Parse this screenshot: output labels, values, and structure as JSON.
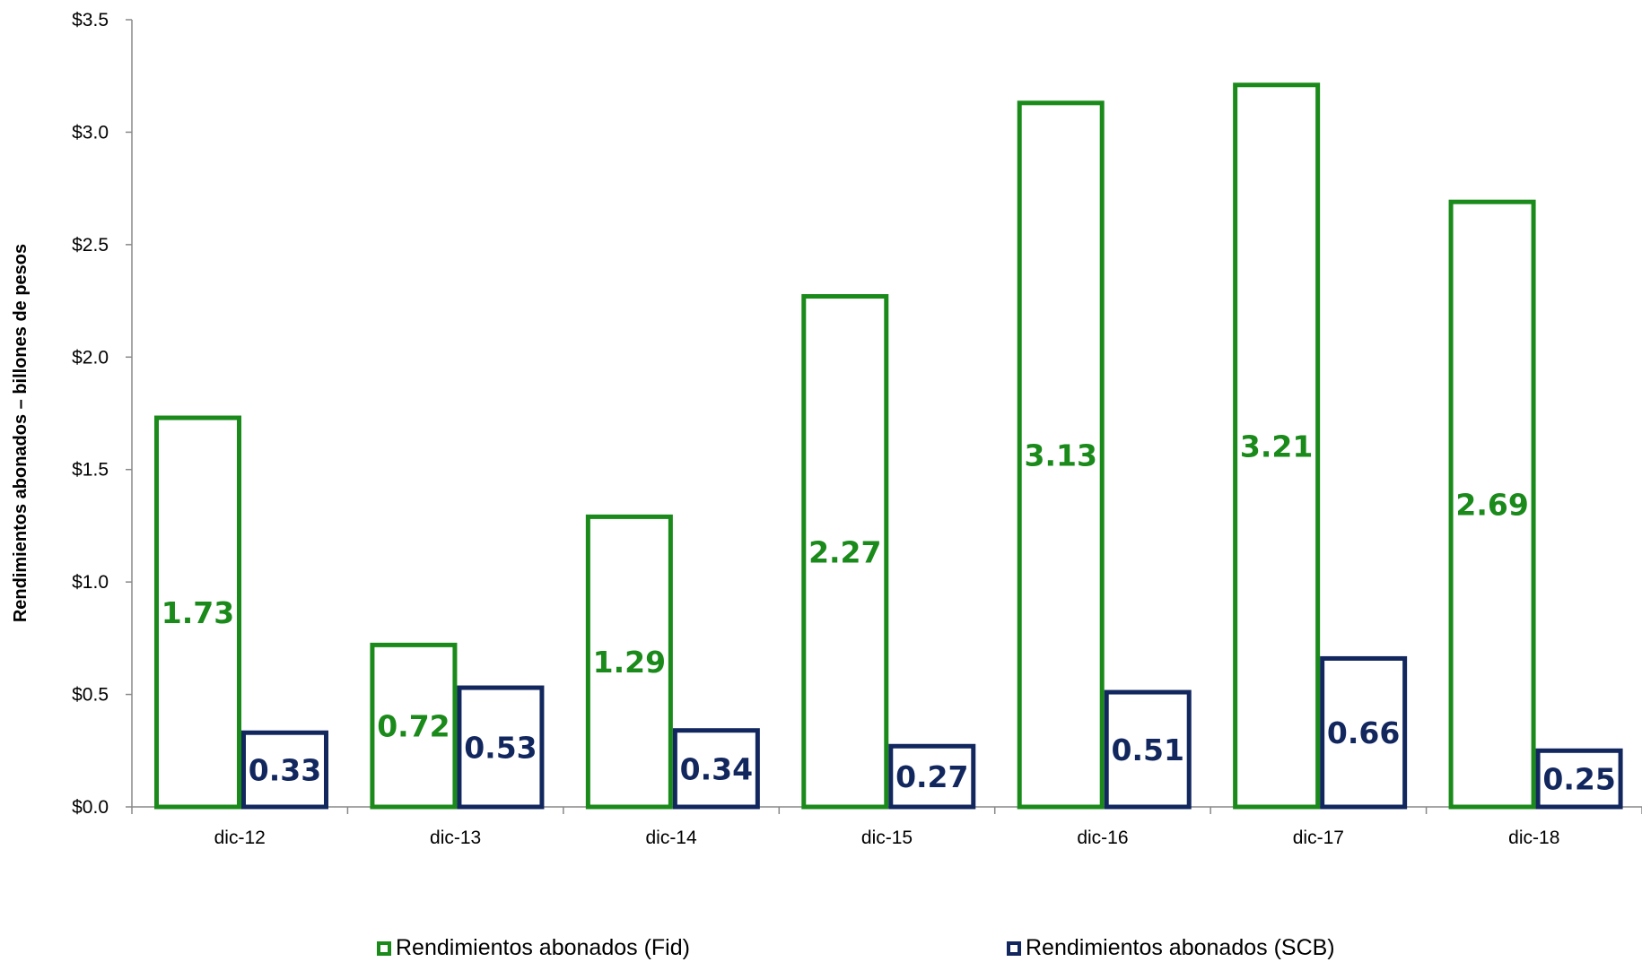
{
  "chart_data": {
    "type": "bar",
    "categories": [
      "dic-12",
      "dic-13",
      "dic-14",
      "dic-15",
      "dic-16",
      "dic-17",
      "dic-18"
    ],
    "series": [
      {
        "name": "Rendimientos abonados (Fid)",
        "values": [
          1.73,
          0.72,
          1.29,
          2.27,
          3.13,
          3.21,
          2.69
        ],
        "color": "#1a8a1a"
      },
      {
        "name": "Rendimientos abonados (SCB)",
        "values": [
          0.33,
          0.53,
          0.34,
          0.27,
          0.51,
          0.66,
          0.25
        ],
        "color": "#12275e"
      }
    ],
    "data_labels": [
      [
        "1.73",
        "0.72",
        "1.29",
        "2.27",
        "3.13",
        "3.21",
        "2.69"
      ],
      [
        "0.33",
        "0.53",
        "0.34",
        "0.27",
        "0.51",
        "0.66",
        "0.25"
      ]
    ],
    "ylabel": "Rendimientos abonados – billones de pesos",
    "xlabel": "",
    "ylim": [
      0,
      3.5
    ],
    "yticks": [
      "$0.0",
      "$0.5",
      "$1.0",
      "$1.5",
      "$2.0",
      "$2.5",
      "$3.0",
      "$3.5"
    ],
    "grid": false,
    "legend_position": "bottom"
  }
}
